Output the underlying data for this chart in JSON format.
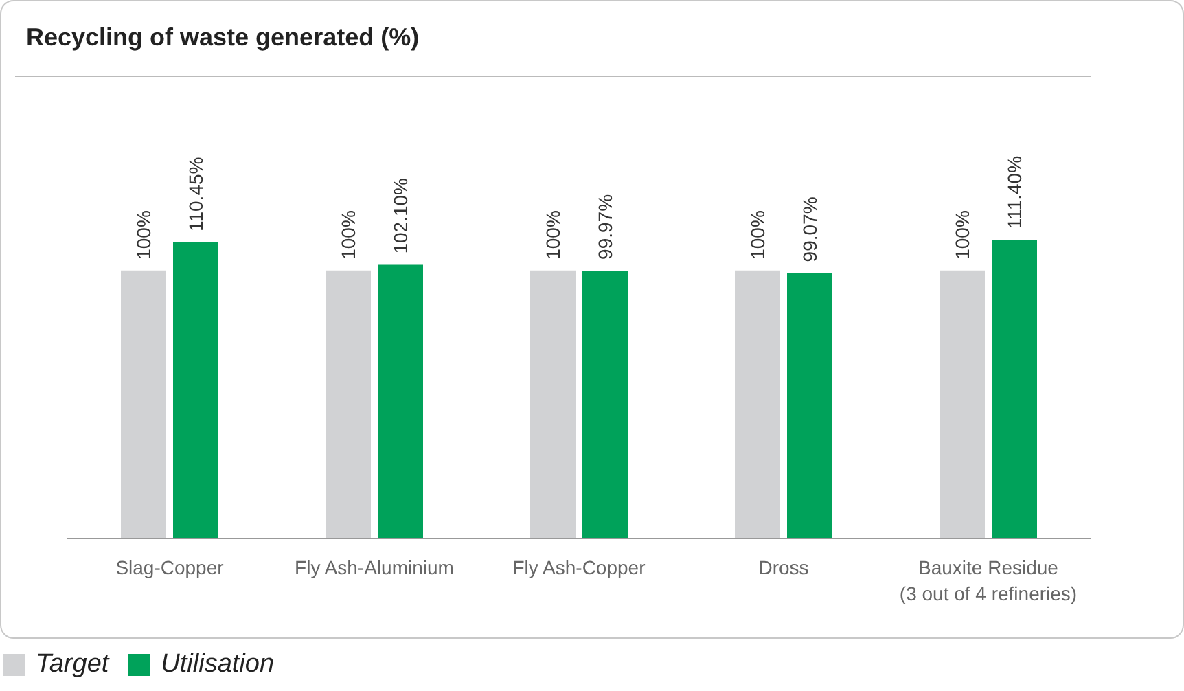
{
  "chart_data": {
    "type": "bar",
    "title": "Recycling of waste generated (%)",
    "categories": [
      "Slag-Copper",
      "Fly Ash-Aluminium",
      "Fly Ash-Copper",
      "Dross",
      "Bauxite Residue\n(3 out of 4 refineries)"
    ],
    "series": [
      {
        "name": "Target",
        "color": "#d1d2d4",
        "values": [
          100,
          100,
          100,
          100,
          100
        ],
        "value_labels": [
          "100%",
          "100%",
          "100%",
          "100%",
          "100%"
        ]
      },
      {
        "name": "Utilisation",
        "color": "#00a25a",
        "values": [
          110.45,
          102.1,
          99.97,
          99.07,
          111.4
        ],
        "value_labels": [
          "110.45%",
          "102.10%",
          "99.97%",
          "99.07%",
          "111.40%"
        ]
      }
    ],
    "grid": false,
    "legend": "bottom"
  }
}
